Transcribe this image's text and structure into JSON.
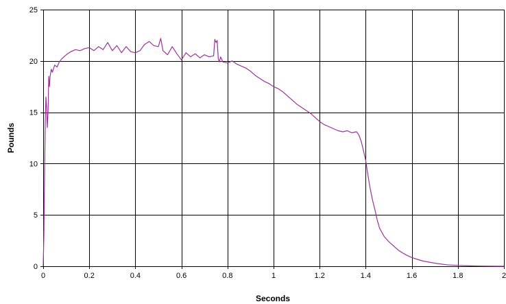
{
  "chart_data": {
    "type": "line",
    "title": "",
    "xlabel": "Seconds",
    "ylabel": "Pounds",
    "xlim": [
      0,
      2
    ],
    "ylim": [
      0,
      25
    ],
    "x_ticks": [
      0,
      0.2,
      0.4,
      0.6,
      0.8,
      1,
      1.2,
      1.4,
      1.6,
      1.8,
      2
    ],
    "x_tick_labels": [
      "0",
      "0.2",
      "0.4",
      "0.6",
      "0.8",
      "1",
      "1.2",
      "1.4",
      "1.6",
      "1.8",
      "2"
    ],
    "y_ticks": [
      0,
      5,
      10,
      15,
      20,
      25
    ],
    "y_tick_labels": [
      "0",
      "5",
      "10",
      "15",
      "20",
      "25"
    ],
    "grid": true,
    "legend": "none",
    "colors": {
      "line": "#993399",
      "grid": "#000000",
      "background": "#ffffff"
    },
    "series": [
      {
        "x": [
          0,
          0.003,
          0.006,
          0.009,
          0.012,
          0.015,
          0.018,
          0.021,
          0.024,
          0.027,
          0.03,
          0.035,
          0.04,
          0.05,
          0.06,
          0.07,
          0.08,
          0.09,
          0.1,
          0.12,
          0.14,
          0.16,
          0.18,
          0.2,
          0.22,
          0.24,
          0.26,
          0.28,
          0.3,
          0.32,
          0.34,
          0.36,
          0.38,
          0.4,
          0.42,
          0.44,
          0.46,
          0.48,
          0.5,
          0.51,
          0.52,
          0.54,
          0.56,
          0.58,
          0.6,
          0.62,
          0.64,
          0.66,
          0.68,
          0.7,
          0.72,
          0.74,
          0.745,
          0.75,
          0.755,
          0.76,
          0.765,
          0.77,
          0.78,
          0.8,
          0.82,
          0.84,
          0.86,
          0.88,
          0.9,
          0.92,
          0.94,
          0.96,
          0.98,
          1.0,
          1.02,
          1.04,
          1.06,
          1.08,
          1.1,
          1.12,
          1.14,
          1.16,
          1.18,
          1.2,
          1.22,
          1.24,
          1.26,
          1.28,
          1.3,
          1.32,
          1.34,
          1.36,
          1.37,
          1.38,
          1.39,
          1.4,
          1.41,
          1.42,
          1.43,
          1.44,
          1.45,
          1.46,
          1.48,
          1.5,
          1.52,
          1.54,
          1.56,
          1.58,
          1.6,
          1.62,
          1.65,
          1.7,
          1.75,
          1.8,
          1.85,
          1.9,
          1.95,
          2.0
        ],
        "y": [
          0,
          3,
          9,
          14,
          16.5,
          15.5,
          13.5,
          15,
          18.5,
          17.5,
          18.5,
          19.2,
          18.9,
          19.6,
          19.4,
          19.9,
          20.2,
          20.4,
          20.6,
          20.9,
          21.1,
          21.0,
          21.2,
          21.3,
          21.0,
          21.4,
          21.1,
          21.8,
          21.0,
          21.5,
          20.8,
          21.4,
          20.9,
          20.8,
          21.0,
          21.6,
          21.9,
          21.5,
          21.4,
          22.2,
          21.0,
          20.6,
          21.4,
          20.7,
          20.1,
          20.8,
          20.4,
          20.7,
          20.3,
          20.6,
          20.4,
          20.5,
          22.1,
          21.8,
          22.0,
          20.2,
          19.9,
          20.4,
          19.9,
          19.8,
          20.0,
          19.7,
          19.5,
          19.3,
          19.0,
          18.6,
          18.3,
          18.0,
          17.8,
          17.5,
          17.3,
          17.0,
          16.6,
          16.2,
          15.8,
          15.5,
          15.2,
          14.9,
          14.5,
          14.1,
          13.8,
          13.6,
          13.4,
          13.2,
          13.1,
          13.2,
          13.0,
          13.1,
          12.8,
          12.2,
          11.3,
          10.3,
          8.8,
          7.5,
          6.4,
          5.5,
          4.5,
          3.7,
          2.9,
          2.4,
          2.0,
          1.6,
          1.3,
          1.05,
          0.85,
          0.7,
          0.5,
          0.3,
          0.15,
          0.08,
          0.04,
          0.02,
          0.01,
          0
        ]
      }
    ]
  }
}
